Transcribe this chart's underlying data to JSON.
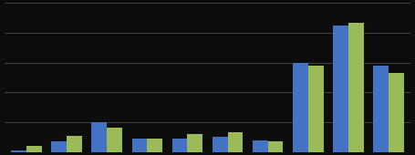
{
  "series1": [
    1,
    7,
    20,
    9,
    9,
    10,
    8,
    60,
    85,
    58
  ],
  "series2": [
    4,
    11,
    16,
    9,
    12,
    13,
    7,
    58,
    87,
    53
  ],
  "bar_color1": "#4472C4",
  "bar_color2": "#9BBB59",
  "background_color": "#0D0D0D",
  "grid_color": "#4A4A4A",
  "ylim": [
    0,
    100
  ],
  "bar_width": 0.38
}
